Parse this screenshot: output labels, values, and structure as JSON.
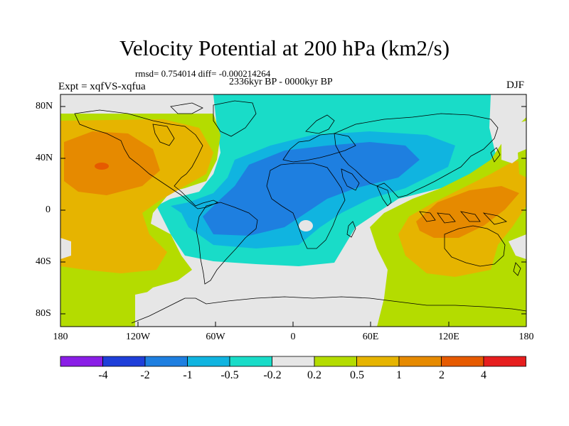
{
  "title": "Velocity Potential at 200 hPa (km2/s)",
  "stats_line": "rmsd= 0.754014 diff= -0.000214264",
  "period": "2336kyr BP - 0000kyr BP",
  "experiment": "Expt = xqfVS-xqfua",
  "season": "DJF",
  "y_ticks": [
    "80N",
    "40N",
    "0",
    "40S",
    "80S"
  ],
  "x_ticks": [
    "180",
    "120W",
    "60W",
    "0",
    "60E",
    "120E",
    "180"
  ],
  "colorbar": {
    "colors": [
      "#8a1ee6",
      "#1f3fd9",
      "#1e7fe0",
      "#10b4e0",
      "#19dcc8",
      "#e6e6e6",
      "#b4dc00",
      "#e6b400",
      "#e68a00",
      "#e65a00",
      "#e61e1e"
    ],
    "labels": [
      "-4",
      "-2",
      "-1",
      "-0.5",
      "-0.2",
      "0.2",
      "0.5",
      "1",
      "2",
      "4"
    ]
  },
  "colors": {
    "deep_neg": "#1e7fe0",
    "neg": "#10b4e0",
    "weak_neg": "#19dcc8",
    "neutral": "#e6e6e6",
    "weak_pos": "#b4dc00",
    "pos": "#e6b400",
    "strong_pos": "#e68a00",
    "max_pos": "#e65a00",
    "peak": "#e61e1e"
  }
}
